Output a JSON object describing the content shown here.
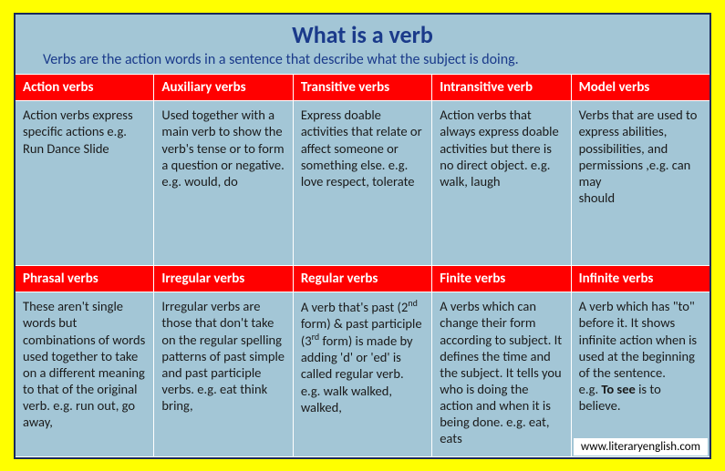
{
  "title": "What is a verb",
  "subtitle": "Verbs are the action words in a sentence that describe what the subject is doing.",
  "credit": "www.literaryenglish.com",
  "colors": {
    "page_bg": "#ffff00",
    "panel_bg": "#a3c6d6",
    "panel_border": "#1a2a5a",
    "header_bg": "#ff0000",
    "header_text": "#ffffff",
    "title_text": "#1a3a8a",
    "cell_text": "#1a1a1a",
    "grid_line": "#ffffff",
    "credit_bg": "#ffffff"
  },
  "typography": {
    "title_fontsize": 26,
    "subtitle_fontsize": 16,
    "header_fontsize": 15,
    "cell_fontsize": 14.5,
    "credit_fontsize": 13,
    "font_family": "Calibri"
  },
  "layout": {
    "columns": 5,
    "body_rows": 2,
    "frame_width": 765,
    "frame_height": 490
  },
  "row1": {
    "headers": [
      "Action verbs",
      "Auxiliary verbs",
      "Transitive verbs",
      "Intransitive verb",
      "Model verbs"
    ],
    "cells": [
      "Action verbs express specific actions e.g. Run Dance Slide",
      "Used together with a main verb to show the verb's tense or to form a question or negative. e.g. would, do",
      "Express doable activities that relate or affect someone or something else. e.g. love respect, tolerate",
      "Action verbs that always express doable activities but there is no direct object. e.g. walk, laugh",
      "Verbs that are used to express abilities, possibilities, and permissions ,e.g. can may\nshould"
    ]
  },
  "row2": {
    "headers": [
      "Phrasal verbs",
      "Irregular verbs",
      "Regular verbs",
      "Finite verbs",
      "Infinite verbs"
    ],
    "cells": [
      "These aren't single words but combinations of words used together to take on a different meaning to that of the original verb. e.g. run out, go away,",
      "Irregular verbs are those that don't take on the regular spelling patterns of past simple and past participle verbs. e.g. eat think bring,",
      "A verb that's past (2<sup class=\"sup\">nd</sup> form) & past participle (3<sup class=\"sup\">rd</sup> form) is made by adding 'd' or 'ed' is called regular verb. e.g. walk walked, walked,",
      "A verbs which can change their form according to subject. It defines the time and the subject. It tells you who is doing the action and when it is being done. e.g. eat, eats",
      "A verb which has \"to\" before it. It shows infinite action when is used at the beginning of the sentence.\ne.g. <b>To see</b> is to believe."
    ]
  }
}
